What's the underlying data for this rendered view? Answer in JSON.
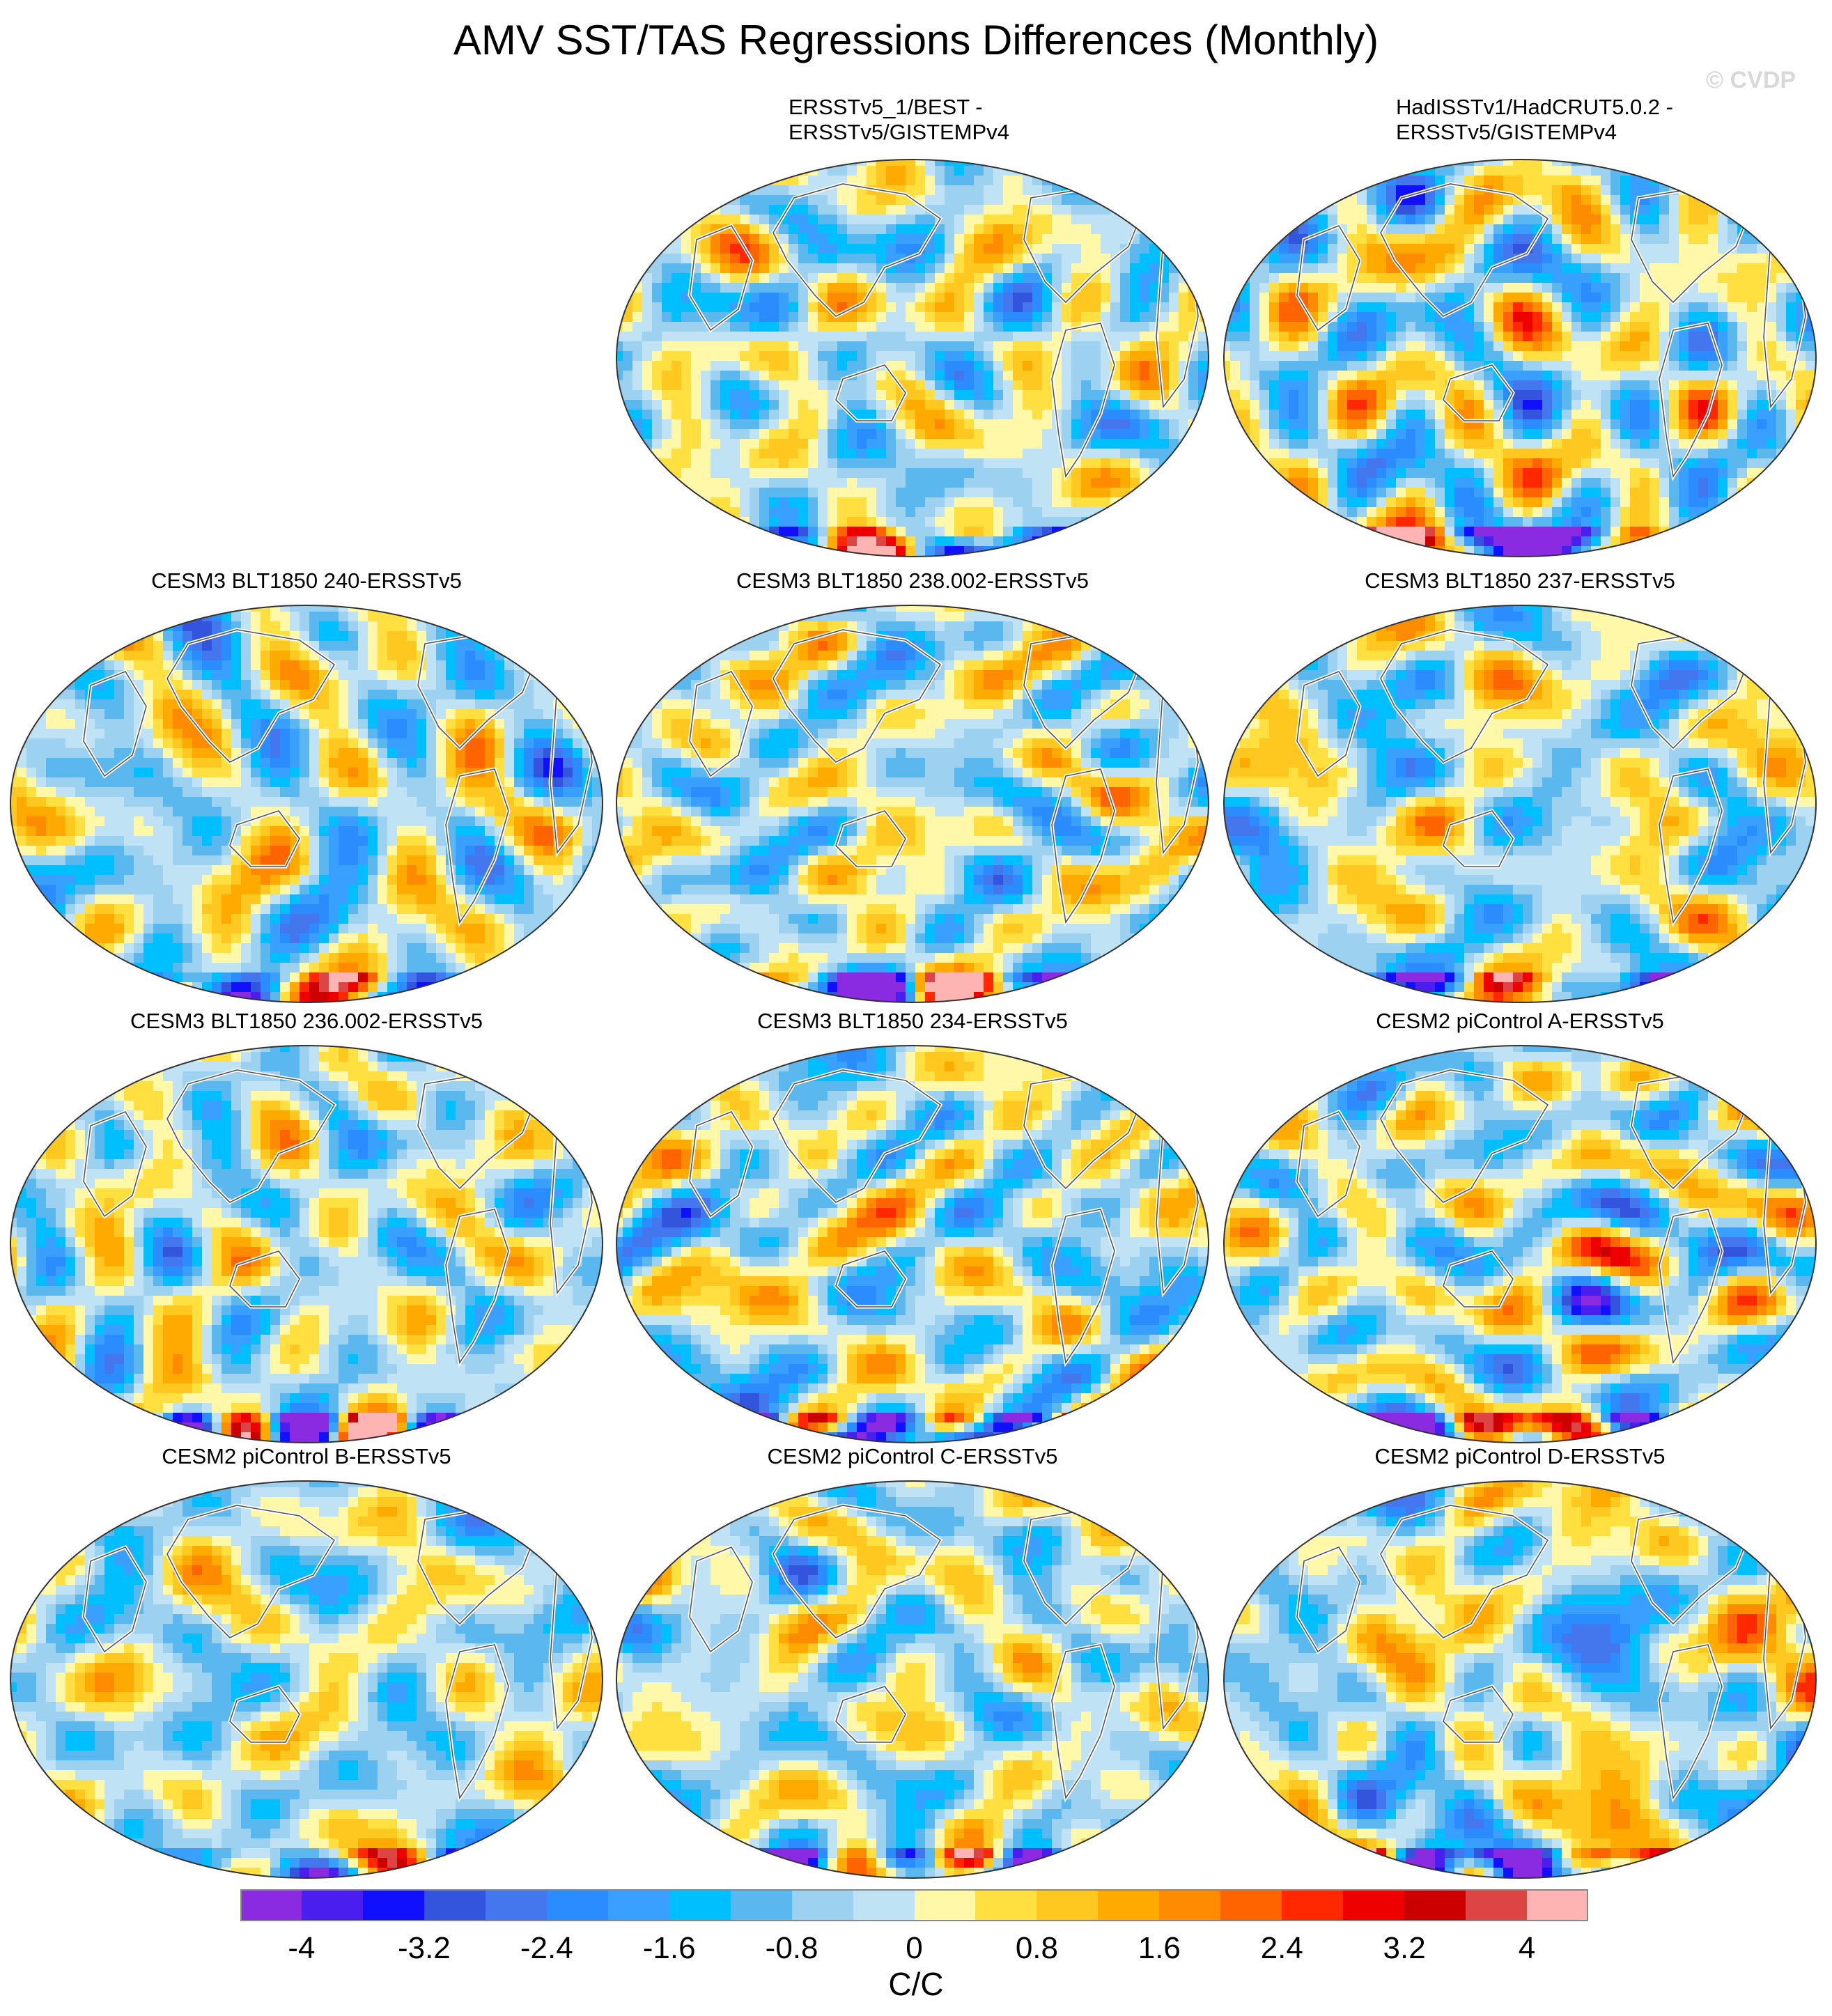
{
  "title": "AMV SST/TAS Regressions Differences (Monthly)",
  "watermark": "© CVDP",
  "panels": [
    {
      "lines": [
        "ERSSTv5_1/BEST -",
        "ERSSTv5/GISTEMPv4"
      ],
      "seed": 11
    },
    {
      "lines": [
        "HadISSTv1/HadCRUT5.0.2 -",
        "ERSSTv5/GISTEMPv4"
      ],
      "seed": 23
    },
    {
      "lines": [
        "CESM3 BLT1850 240-ERSSTv5"
      ],
      "seed": 37
    },
    {
      "lines": [
        "CESM3 BLT1850 238.002-ERSSTv5"
      ],
      "seed": 41
    },
    {
      "lines": [
        "CESM3 BLT1850 237-ERSSTv5"
      ],
      "seed": 53
    },
    {
      "lines": [
        "CESM3 BLT1850 236.002-ERSSTv5"
      ],
      "seed": 67
    },
    {
      "lines": [
        "CESM3 BLT1850 234-ERSSTv5"
      ],
      "seed": 71
    },
    {
      "lines": [
        "CESM2 piControl A-ERSSTv5"
      ],
      "seed": 83
    },
    {
      "lines": [
        "CESM2 piControl B-ERSSTv5"
      ],
      "seed": 97
    },
    {
      "lines": [
        "CESM2 piControl C-ERSSTv5"
      ],
      "seed": 101
    },
    {
      "lines": [
        "CESM2 piControl D-ERSSTv5"
      ],
      "seed": 113
    }
  ],
  "colorbar": {
    "units": "C/C",
    "colors": [
      "#8a2be2",
      "#4b1ef0",
      "#1010ff",
      "#3355dd",
      "#4477ee",
      "#2a8cff",
      "#3aa0ff",
      "#00bfff",
      "#5ab8ee",
      "#9cd1ef",
      "#bfe3f5",
      "#fff8a8",
      "#ffe040",
      "#ffc820",
      "#ffaa00",
      "#ff8c00",
      "#ff6400",
      "#ff2800",
      "#ee0000",
      "#cc0000",
      "#dd4444",
      "#ffb4b4"
    ],
    "ticks": [
      "-4",
      "-3.2",
      "-2.4",
      "-1.6",
      "-0.8",
      "0",
      "0.8",
      "1.6",
      "2.4",
      "3.2",
      "4"
    ]
  }
}
